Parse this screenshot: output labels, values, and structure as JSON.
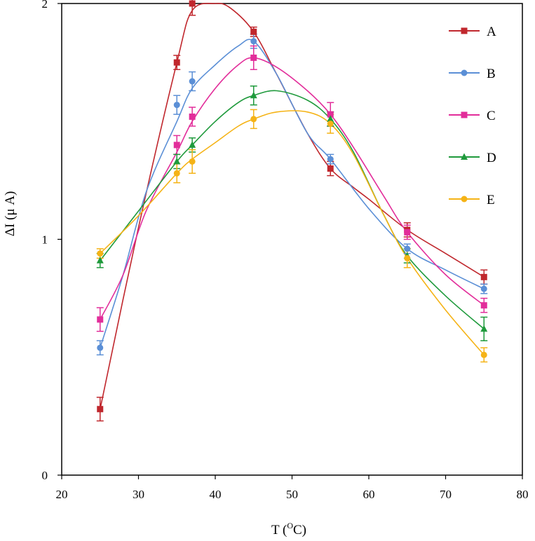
{
  "chart_data": {
    "type": "line",
    "title": "",
    "xlabel_main": "T (",
    "xlabel_sup": "O",
    "xlabel_end": "C)",
    "ylabel": "ΔI (μ A)",
    "xlim": [
      20,
      80
    ],
    "ylim": [
      0,
      2
    ],
    "x_ticks": [
      20,
      30,
      40,
      50,
      60,
      70,
      80
    ],
    "y_ticks": [
      0,
      1,
      2
    ],
    "x_tick_labels": [
      "20",
      "30",
      "40",
      "50",
      "60",
      "70",
      "80"
    ],
    "y_tick_labels": [
      "0",
      "1",
      "2"
    ],
    "legend_position": "top-right",
    "x": [
      25,
      35,
      37,
      45,
      55,
      65,
      75
    ],
    "series": [
      {
        "name": "A",
        "color": "#c0272d",
        "marker": "square",
        "values": [
          0.28,
          1.75,
          2.0,
          1.88,
          1.3,
          1.04,
          0.84
        ],
        "errors": [
          0.05,
          0.03,
          0.05,
          0.02,
          0.03,
          0.03,
          0.03
        ],
        "curve": [
          [
            25,
            0.28
          ],
          [
            30,
            1.05
          ],
          [
            35,
            1.75
          ],
          [
            37,
            1.97
          ],
          [
            40,
            2.0
          ],
          [
            42,
            1.98
          ],
          [
            45,
            1.88
          ],
          [
            48,
            1.7
          ],
          [
            52,
            1.45
          ],
          [
            55,
            1.3
          ],
          [
            58,
            1.22
          ],
          [
            60,
            1.17
          ],
          [
            65,
            1.04
          ],
          [
            70,
            0.94
          ],
          [
            75,
            0.84
          ]
        ]
      },
      {
        "name": "B",
        "color": "#5b8fd6",
        "marker": "circle",
        "values": [
          0.54,
          1.57,
          1.67,
          1.84,
          1.34,
          0.96,
          0.79
        ],
        "errors": [
          0.03,
          0.04,
          0.04,
          0.03,
          0.02,
          0.02,
          0.02
        ],
        "curve": [
          [
            25,
            0.54
          ],
          [
            28,
            0.85
          ],
          [
            31,
            1.2
          ],
          [
            35,
            1.5
          ],
          [
            37,
            1.64
          ],
          [
            40,
            1.74
          ],
          [
            43,
            1.82
          ],
          [
            45,
            1.84
          ],
          [
            48,
            1.7
          ],
          [
            52,
            1.45
          ],
          [
            55,
            1.34
          ],
          [
            60,
            1.13
          ],
          [
            65,
            0.96
          ],
          [
            70,
            0.87
          ],
          [
            75,
            0.79
          ]
        ]
      },
      {
        "name": "C",
        "color": "#e22d9a",
        "marker": "square",
        "values": [
          0.66,
          1.4,
          1.52,
          1.77,
          1.53,
          1.03,
          0.72
        ],
        "errors": [
          0.05,
          0.04,
          0.04,
          0.05,
          0.05,
          0.03,
          0.03
        ],
        "curve": [
          [
            25,
            0.66
          ],
          [
            28,
            0.85
          ],
          [
            31,
            1.12
          ],
          [
            35,
            1.37
          ],
          [
            37,
            1.5
          ],
          [
            40,
            1.64
          ],
          [
            43,
            1.74
          ],
          [
            45,
            1.77
          ],
          [
            48,
            1.73
          ],
          [
            52,
            1.63
          ],
          [
            55,
            1.53
          ],
          [
            58,
            1.39
          ],
          [
            62,
            1.18
          ],
          [
            65,
            1.03
          ],
          [
            70,
            0.85
          ],
          [
            75,
            0.72
          ]
        ]
      },
      {
        "name": "D",
        "color": "#1f9a3c",
        "marker": "triangle",
        "values": [
          0.91,
          1.33,
          1.4,
          1.61,
          1.51,
          0.93,
          0.62
        ],
        "errors": [
          0.03,
          0.03,
          0.03,
          0.04,
          0.03,
          0.03,
          0.05
        ],
        "curve": [
          [
            25,
            0.91
          ],
          [
            30,
            1.12
          ],
          [
            35,
            1.33
          ],
          [
            37,
            1.4
          ],
          [
            40,
            1.5
          ],
          [
            43,
            1.58
          ],
          [
            45,
            1.61
          ],
          [
            48,
            1.63
          ],
          [
            52,
            1.59
          ],
          [
            55,
            1.51
          ],
          [
            58,
            1.37
          ],
          [
            62,
            1.1
          ],
          [
            65,
            0.93
          ],
          [
            70,
            0.76
          ],
          [
            75,
            0.62
          ]
        ]
      },
      {
        "name": "E",
        "color": "#f5b316",
        "marker": "circle",
        "values": [
          0.94,
          1.28,
          1.33,
          1.51,
          1.49,
          0.92,
          0.51
        ],
        "errors": [
          0.02,
          0.04,
          0.05,
          0.04,
          0.04,
          0.04,
          0.03
        ],
        "curve": [
          [
            25,
            0.94
          ],
          [
            30,
            1.1
          ],
          [
            35,
            1.28
          ],
          [
            37,
            1.34
          ],
          [
            40,
            1.41
          ],
          [
            43,
            1.48
          ],
          [
            45,
            1.51
          ],
          [
            48,
            1.54
          ],
          [
            52,
            1.54
          ],
          [
            55,
            1.49
          ],
          [
            58,
            1.36
          ],
          [
            62,
            1.1
          ],
          [
            65,
            0.92
          ],
          [
            70,
            0.7
          ],
          [
            75,
            0.51
          ]
        ]
      }
    ]
  }
}
